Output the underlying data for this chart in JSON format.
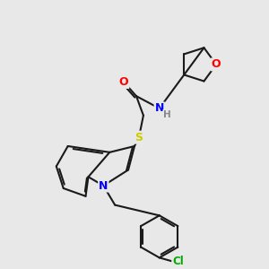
{
  "background_color": "#e8e8e8",
  "bond_color": "#1a1a1a",
  "atom_colors": {
    "O": "#ff0000",
    "N": "#0000ff",
    "S": "#cccc00",
    "Cl": "#00aa00",
    "H": "#888888",
    "C": "#1a1a1a"
  },
  "figsize": [
    3.0,
    3.0
  ],
  "dpi": 100
}
